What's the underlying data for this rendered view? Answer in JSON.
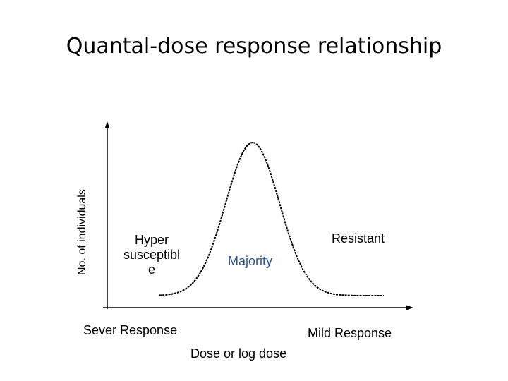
{
  "title": "Quantal-dose response relationship",
  "axes": {
    "y_label": "No. of individuals",
    "x_label": "Dose or log dose"
  },
  "labels": {
    "hyper": "Hyper\nsusceptibl\ne",
    "majority": "Majority",
    "resistant": "Resistant",
    "sever": "Sever Response",
    "mild": "Mild Response"
  },
  "colors": {
    "majority": "#2f5597",
    "curve": "#000000",
    "axis": "#000000"
  }
}
